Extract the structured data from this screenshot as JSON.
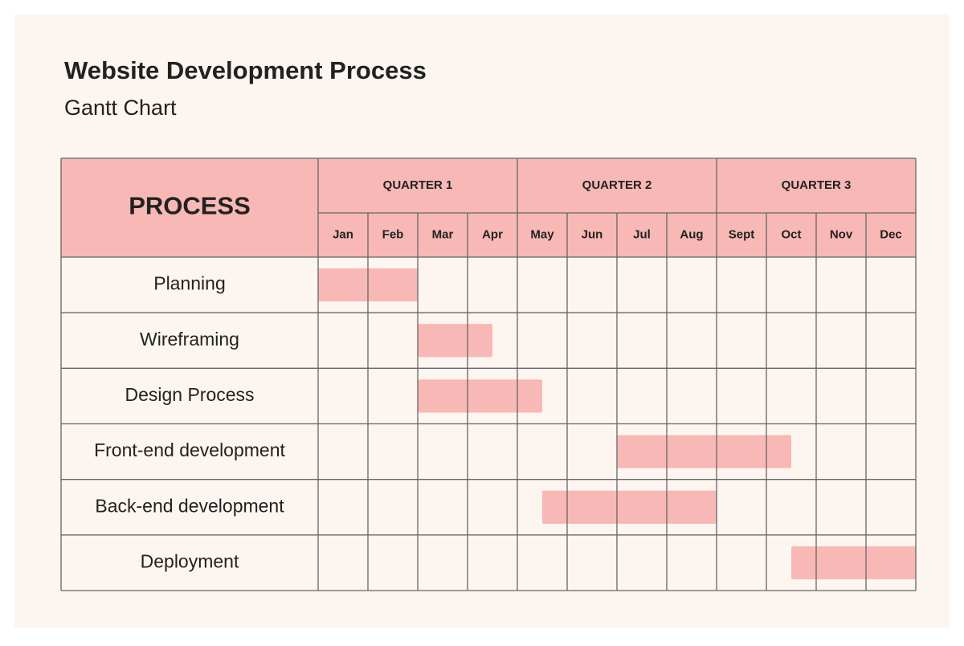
{
  "chart_data": {
    "type": "gantt",
    "title": "Website Development Process",
    "subtitle": "Gantt Chart",
    "row_header": "PROCESS",
    "quarters": [
      "QUARTER 1",
      "QUARTER 2",
      "QUARTER 3"
    ],
    "months": [
      "Jan",
      "Feb",
      "Mar",
      "Apr",
      "May",
      "Jun",
      "Jul",
      "Aug",
      "Sept",
      "Oct",
      "Nov",
      "Dec"
    ],
    "categories": [
      "Planning",
      "Wireframing",
      "Design Process",
      "Front-end development",
      "Back-end development",
      "Deployment"
    ],
    "start": [
      0,
      2,
      2,
      6,
      4.5,
      9.5
    ],
    "end": [
      2,
      3.5,
      4.5,
      9.5,
      8,
      12
    ],
    "xlim": [
      0,
      12
    ],
    "color": "#f8b8b5"
  }
}
